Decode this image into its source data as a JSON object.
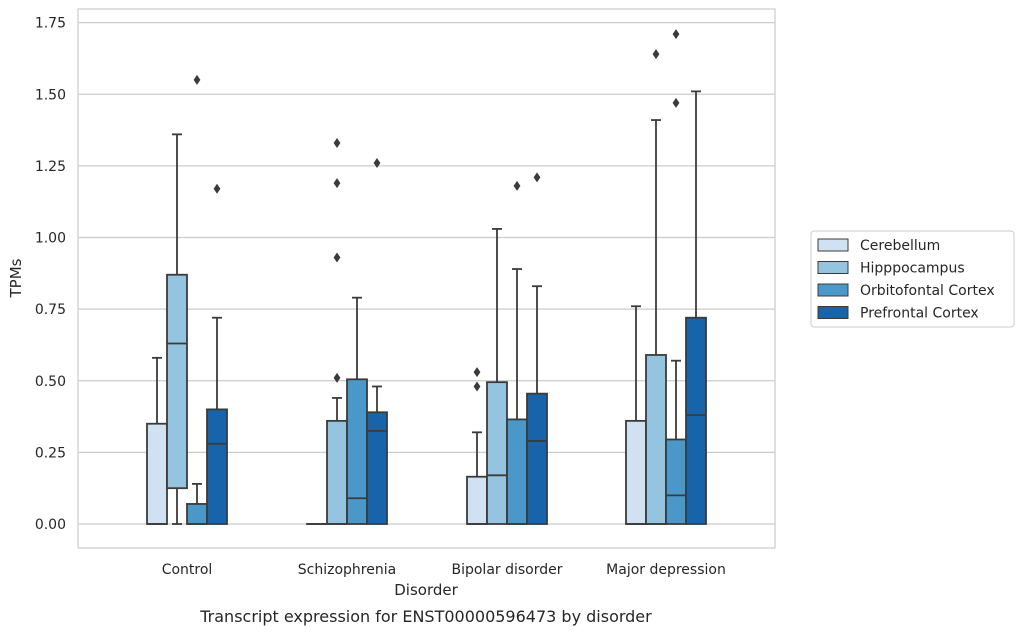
{
  "chart_data": {
    "type": "box",
    "caption": "Transcript expression for ENST00000596473 by disorder",
    "xlabel": "Disorder",
    "ylabel": "TPMs",
    "ylim": [
      -0.08,
      1.8
    ],
    "yticks": [
      0.0,
      0.25,
      0.5,
      0.75,
      1.0,
      1.25,
      1.5,
      1.75
    ],
    "ytick_labels": [
      "0.00",
      "0.25",
      "0.50",
      "0.75",
      "1.00",
      "1.25",
      "1.50",
      "1.75"
    ],
    "grid": "horizontal",
    "legend_position": "right-outside",
    "categories": [
      "Control",
      "Schizophrenia",
      "Bipolar disorder",
      "Major depression"
    ],
    "series": [
      {
        "name": "Cerebellum",
        "color": "#d0e1f2",
        "boxes": [
          {
            "whisker_low": 0.0,
            "q1": 0.0,
            "median": 0.0,
            "q3": 0.35,
            "whisker_high": 0.58,
            "outliers": []
          },
          {
            "whisker_low": 0.0,
            "q1": 0.0,
            "median": 0.0,
            "q3": 0.0,
            "whisker_high": 0.0,
            "outliers": []
          },
          {
            "whisker_low": 0.0,
            "q1": 0.0,
            "median": 0.0,
            "q3": 0.165,
            "whisker_high": 0.32,
            "outliers": [
              0.48,
              0.53
            ]
          },
          {
            "whisker_low": 0.0,
            "q1": 0.0,
            "median": 0.0,
            "q3": 0.36,
            "whisker_high": 0.76,
            "outliers": []
          }
        ]
      },
      {
        "name": "Hipppocampus",
        "color": "#94c4df",
        "boxes": [
          {
            "whisker_low": 0.0,
            "q1": 0.125,
            "median": 0.63,
            "q3": 0.87,
            "whisker_high": 1.36,
            "outliers": []
          },
          {
            "whisker_low": 0.0,
            "q1": 0.0,
            "median": 0.0,
            "q3": 0.36,
            "whisker_high": 0.44,
            "outliers": [
              0.51,
              0.93,
              1.19,
              1.33
            ]
          },
          {
            "whisker_low": 0.0,
            "q1": 0.0,
            "median": 0.17,
            "q3": 0.495,
            "whisker_high": 1.03,
            "outliers": []
          },
          {
            "whisker_low": 0.0,
            "q1": 0.0,
            "median": 0.0,
            "q3": 0.59,
            "whisker_high": 1.41,
            "outliers": [
              1.64
            ]
          }
        ]
      },
      {
        "name": "Orbitofontal Cortex",
        "color": "#4a98c9",
        "boxes": [
          {
            "whisker_low": 0.0,
            "q1": 0.0,
            "median": 0.0,
            "q3": 0.07,
            "whisker_high": 0.14,
            "outliers": [
              1.55
            ]
          },
          {
            "whisker_low": 0.0,
            "q1": 0.0,
            "median": 0.09,
            "q3": 0.505,
            "whisker_high": 0.79,
            "outliers": []
          },
          {
            "whisker_low": 0.0,
            "q1": 0.0,
            "median": 0.0,
            "q3": 0.365,
            "whisker_high": 0.89,
            "outliers": [
              1.18
            ]
          },
          {
            "whisker_low": 0.0,
            "q1": 0.0,
            "median": 0.1,
            "q3": 0.295,
            "whisker_high": 0.57,
            "outliers": [
              1.47,
              1.71
            ]
          }
        ]
      },
      {
        "name": "Prefrontal Cortex",
        "color": "#1764ab",
        "boxes": [
          {
            "whisker_low": 0.0,
            "q1": 0.0,
            "median": 0.28,
            "q3": 0.4,
            "whisker_high": 0.72,
            "outliers": [
              1.17
            ]
          },
          {
            "whisker_low": 0.0,
            "q1": 0.0,
            "median": 0.325,
            "q3": 0.39,
            "whisker_high": 0.48,
            "outliers": [
              1.26
            ]
          },
          {
            "whisker_low": 0.0,
            "q1": 0.0,
            "median": 0.29,
            "q3": 0.455,
            "whisker_high": 0.83,
            "outliers": [
              1.21
            ]
          },
          {
            "whisker_low": 0.0,
            "q1": 0.0,
            "median": 0.38,
            "q3": 0.72,
            "whisker_high": 1.51,
            "outliers": []
          }
        ]
      }
    ]
  }
}
